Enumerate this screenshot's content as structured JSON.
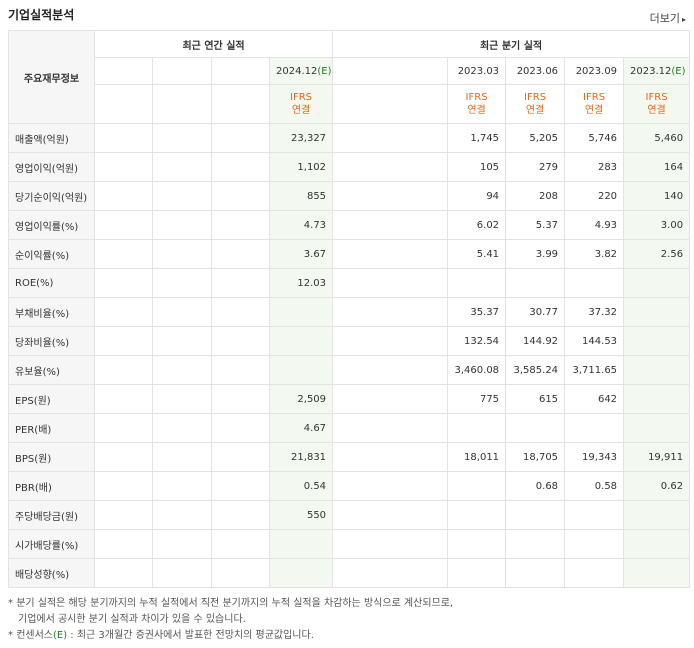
{
  "header": {
    "title": "기업실적분석",
    "more_label": "더보기"
  },
  "table": {
    "side_label": "주요재무정보",
    "annual_label": "최근 연간 실적",
    "quarter_label": "최근 분기 실적",
    "annual_periods": [
      "",
      "",
      "",
      "2024.12"
    ],
    "annual_estimate": [
      "",
      "",
      "",
      "(E)"
    ],
    "quarter_periods": [
      "",
      "2023.03",
      "2023.06",
      "2023.09",
      "2023.12"
    ],
    "quarter_estimate": [
      "",
      "",
      "",
      "",
      "(E)"
    ],
    "ifrs_line1": "IFRS",
    "ifrs_line2": "연결",
    "rows": [
      {
        "label": "매출액(억원)",
        "annual": [
          "",
          "",
          "",
          "23,327"
        ],
        "quarter": [
          "",
          "1,745",
          "5,205",
          "5,746",
          "5,460"
        ]
      },
      {
        "label": "영업이익(억원)",
        "annual": [
          "",
          "",
          "",
          "1,102"
        ],
        "quarter": [
          "",
          "105",
          "279",
          "283",
          "164"
        ]
      },
      {
        "label": "당기순이익(억원)",
        "annual": [
          "",
          "",
          "",
          "855"
        ],
        "quarter": [
          "",
          "94",
          "208",
          "220",
          "140"
        ]
      },
      {
        "label": "영업이익률(%)",
        "annual": [
          "",
          "",
          "",
          "4.73"
        ],
        "quarter": [
          "",
          "6.02",
          "5.37",
          "4.93",
          "3.00"
        ]
      },
      {
        "label": "순이익률(%)",
        "annual": [
          "",
          "",
          "",
          "3.67"
        ],
        "quarter": [
          "",
          "5.41",
          "3.99",
          "3.82",
          "2.56"
        ]
      },
      {
        "label": "ROE(%)",
        "annual": [
          "",
          "",
          "",
          "12.03"
        ],
        "quarter": [
          "",
          "",
          "",
          "",
          ""
        ]
      },
      {
        "label": "부채비율(%)",
        "annual": [
          "",
          "",
          "",
          ""
        ],
        "quarter": [
          "",
          "35.37",
          "30.77",
          "37.32",
          ""
        ]
      },
      {
        "label": "당좌비율(%)",
        "annual": [
          "",
          "",
          "",
          ""
        ],
        "quarter": [
          "",
          "132.54",
          "144.92",
          "144.53",
          ""
        ]
      },
      {
        "label": "유보율(%)",
        "annual": [
          "",
          "",
          "",
          ""
        ],
        "quarter": [
          "",
          "3,460.08",
          "3,585.24",
          "3,711.65",
          ""
        ]
      },
      {
        "label": "EPS(원)",
        "annual": [
          "",
          "",
          "",
          "2,509"
        ],
        "quarter": [
          "",
          "775",
          "615",
          "642",
          ""
        ]
      },
      {
        "label": "PER(배)",
        "annual": [
          "",
          "",
          "",
          "4.67"
        ],
        "quarter": [
          "",
          "",
          "",
          "",
          ""
        ]
      },
      {
        "label": "BPS(원)",
        "annual": [
          "",
          "",
          "",
          "21,831"
        ],
        "quarter": [
          "",
          "18,011",
          "18,705",
          "19,343",
          "19,911"
        ]
      },
      {
        "label": "PBR(배)",
        "annual": [
          "",
          "",
          "",
          "0.54"
        ],
        "quarter": [
          "",
          "",
          "0.68",
          "0.58",
          "0.62"
        ]
      },
      {
        "label": "주당배당금(원)",
        "annual": [
          "",
          "",
          "",
          "550"
        ],
        "quarter": [
          "",
          "",
          "",
          "",
          ""
        ]
      },
      {
        "label": "시가배당률(%)",
        "annual": [
          "",
          "",
          "",
          ""
        ],
        "quarter": [
          "",
          "",
          "",
          "",
          ""
        ]
      },
      {
        "label": "배당성향(%)",
        "annual": [
          "",
          "",
          "",
          ""
        ],
        "quarter": [
          "",
          "",
          "",
          "",
          ""
        ]
      }
    ],
    "group_starts": [
      3,
      6,
      9,
      13
    ]
  },
  "notes": {
    "line1": "분기 실적은 해당 분기까지의 누적 실적에서 직전 분기까지의 누적 실적을 차감하는 방식으로 계산되므로,",
    "line2": "기업에서 공시한 분기 실적과 차이가 있을 수 있습니다.",
    "line3_prefix": "컨센서스",
    "line3_e": "(E)",
    "line3_suffix": " : 최근 3개월간 증권사에서 발표한 전망치의 평균값입니다."
  }
}
